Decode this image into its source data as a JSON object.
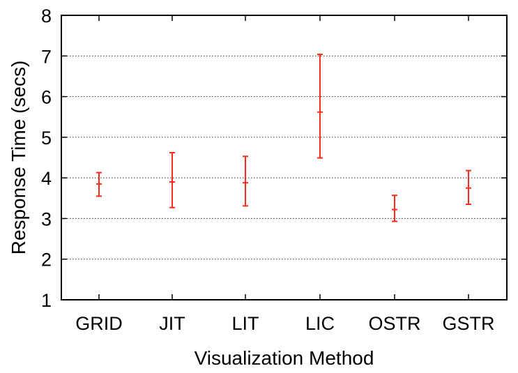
{
  "chart_data": {
    "type": "errorbar",
    "title": "",
    "xlabel": "Visualization Method",
    "ylabel": "Response Time (secs)",
    "ylim": [
      1,
      8
    ],
    "yticks": [
      "1",
      "2",
      "3",
      "4",
      "5",
      "6",
      "7",
      "8"
    ],
    "grid": "horizontal dotted at y = 2..7",
    "categories": [
      "GRID",
      "JIT",
      "LIT",
      "LIC",
      "OSTR",
      "GSTR"
    ],
    "series": [
      {
        "mean": [
          3.85,
          3.9,
          3.88,
          5.62,
          3.22,
          3.75
        ],
        "lower": [
          3.55,
          3.27,
          3.31,
          4.49,
          2.93,
          3.35
        ],
        "upper": [
          4.13,
          4.62,
          4.53,
          7.04,
          3.57,
          4.18
        ]
      }
    ],
    "colors": {
      "errorbar": "#ff2a1a"
    }
  }
}
